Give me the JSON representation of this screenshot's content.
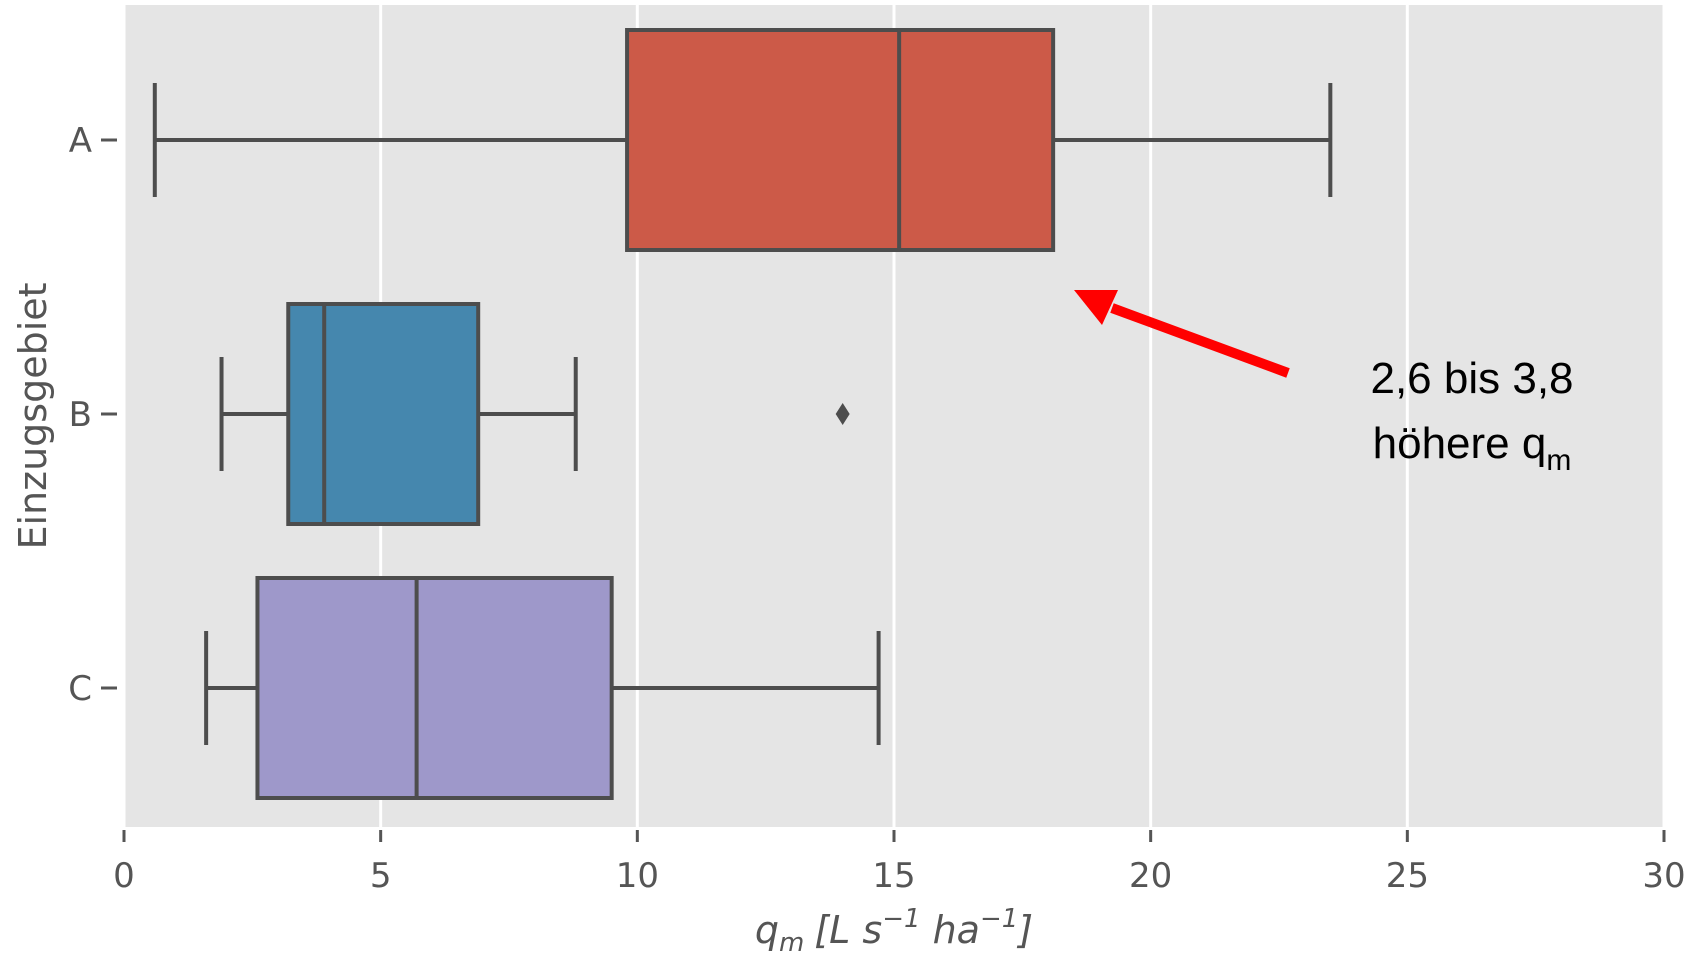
{
  "chart_data": {
    "type": "boxplot",
    "orientation": "horizontal",
    "xlabel": {
      "main": "q",
      "sub": "m",
      "bracket_open": "[L s",
      "exp1": "−1",
      "mid": " ha",
      "exp2": "−1",
      "bracket_close": "]"
    },
    "ylabel": "Einzugsgebiet",
    "xlim": [
      0,
      30
    ],
    "xticks": [
      "0",
      "5",
      "10",
      "15",
      "20",
      "25",
      "30"
    ],
    "grid": true,
    "categories": [
      "A",
      "B",
      "C"
    ],
    "boxes": [
      {
        "name": "A",
        "whisker_low": 0.6,
        "q1": 9.8,
        "median": 15.1,
        "q3": 18.1,
        "whisker_high": 23.5,
        "outliers": [],
        "color": "#CC5A48"
      },
      {
        "name": "B",
        "whisker_low": 1.9,
        "q1": 3.2,
        "median": 3.9,
        "q3": 6.9,
        "whisker_high": 8.8,
        "outliers": [
          14.0
        ],
        "color": "#4587AE"
      },
      {
        "name": "C",
        "whisker_low": 1.6,
        "q1": 2.6,
        "median": 5.7,
        "q3": 9.5,
        "whisker_high": 14.7,
        "outliers": [],
        "color": "#9E98CA"
      }
    ],
    "annotation": {
      "line1": "2,6 bis 3,8",
      "line2_main": "höhere q",
      "line2_sub": "m",
      "arrow_color": "#FF0000"
    },
    "background_color": "#E5E5E5",
    "grid_color": "#FFFFFF",
    "edge_color": "#4D4D4D"
  }
}
